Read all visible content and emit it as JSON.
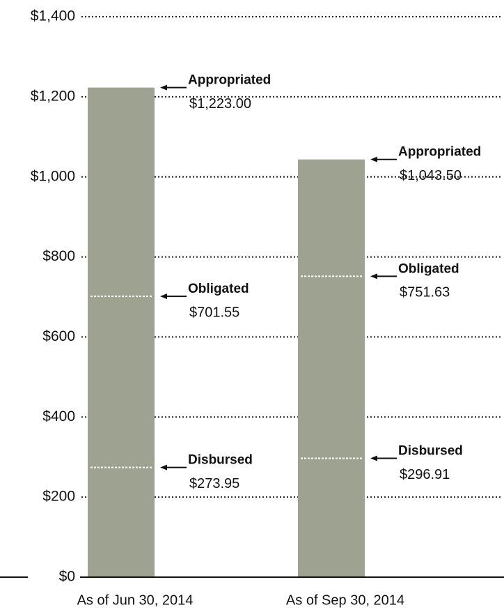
{
  "chart_data": {
    "type": "bar",
    "categories": [
      "As of Jun 30, 2014",
      "As of Sep 30, 2014"
    ],
    "series": [
      {
        "name": "Appropriated",
        "color": "#9ea391",
        "values": [
          1223,
          1043.5
        ],
        "value_labels": [
          "$1,223.00",
          "$1,043.50"
        ]
      },
      {
        "name": "Obligated",
        "color": "#ffffff",
        "values": [
          701.55,
          751.63
        ],
        "value_labels": [
          "$701.55",
          "$751.63"
        ]
      },
      {
        "name": "Disbursed",
        "color": "#ffffff",
        "values": [
          273.95,
          296.91
        ],
        "value_labels": [
          "$273.95",
          "$296.91"
        ]
      }
    ],
    "ylim": [
      0,
      1400
    ],
    "yticks": [
      {
        "value": 0,
        "label": "$0"
      },
      {
        "value": 200,
        "label": "$200"
      },
      {
        "value": 400,
        "label": "$400"
      },
      {
        "value": 600,
        "label": "$600"
      },
      {
        "value": 800,
        "label": "$800"
      },
      {
        "value": 1000,
        "label": "$1,000"
      },
      {
        "value": 1200,
        "label": "$1,200"
      },
      {
        "value": 1400,
        "label": "$1,400"
      }
    ],
    "grid": true
  }
}
